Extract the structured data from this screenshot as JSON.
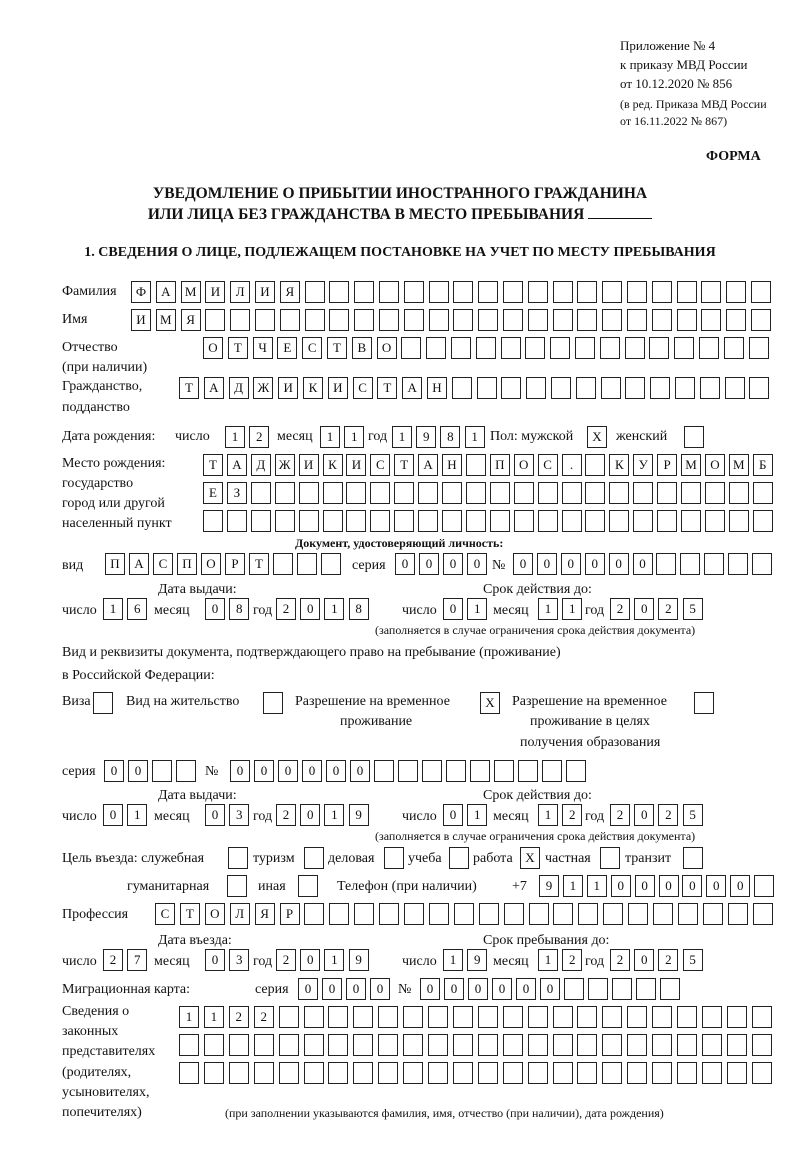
{
  "header": {
    "line1": "Приложение № 4",
    "line2": "к приказу МВД России",
    "line3": "от 10.12.2020 № 856",
    "note1": "(в ред. Приказа МВД России",
    "note2": "от 16.11.2022 № 867)"
  },
  "form_label": "ФОРМА",
  "title": {
    "line1": "УВЕДОМЛЕНИЕ О ПРИБЫТИИ ИНОСТРАННОГО ГРАЖДАНИНА",
    "line2": "ИЛИ ЛИЦА БЕЗ ГРАЖДАНСТВА В МЕСТО ПРЕБЫВАНИЯ",
    "blank": ""
  },
  "section1": {
    "heading": "1. СВЕДЕНИЯ О ЛИЦЕ, ПОДЛЕЖАЩЕМ ПОСТАНОВКЕ НА УЧЕТ ПО МЕСТУ ПРЕБЫВАНИЯ",
    "surname": {
      "label": "Фамилия",
      "value": [
        "Ф",
        "А",
        "М",
        "И",
        "Л",
        "И",
        "Я"
      ]
    },
    "name": {
      "label": "Имя",
      "value": [
        "И",
        "М",
        "Я"
      ]
    },
    "patronymic": {
      "label": "Отчество",
      "label2": "(при наличии)",
      "value": [
        "О",
        "Т",
        "Ч",
        "Е",
        "С",
        "Т",
        "В",
        "О"
      ]
    },
    "citizenship": {
      "label": "Гражданство,",
      "label2": "подданство",
      "value": [
        "Т",
        "А",
        "Д",
        "Ж",
        "И",
        "К",
        "И",
        "С",
        "Т",
        "А",
        "Н"
      ]
    },
    "birth_date": {
      "label": "Дата рождения:",
      "day_label": "число",
      "month_label": "месяц",
      "year_label": "год",
      "day": [
        "1",
        "2"
      ],
      "month": [
        "1",
        "1"
      ],
      "year": [
        "1",
        "9",
        "8",
        "1"
      ]
    },
    "sex": {
      "male_label": "Пол: мужской",
      "male": [
        "Х"
      ],
      "female_label": "женский",
      "female": []
    },
    "birth_place": {
      "label1": "Место рождения:",
      "label2": "государство",
      "label3": "город или другой",
      "label4": "населенный пункт",
      "row1": [
        "Т",
        "А",
        "Д",
        "Ж",
        "И",
        "К",
        "И",
        "С",
        "Т",
        "А",
        "Н",
        "",
        "П",
        "О",
        "С",
        ".",
        "",
        "К",
        "У",
        "Р",
        "М",
        "О",
        "М",
        "Б"
      ],
      "row2": [
        "Е",
        "З"
      ],
      "row3": []
    },
    "identity_doc": {
      "heading": "Документ, удостоверяющий личность:",
      "type_label": "вид",
      "type": [
        "П",
        "А",
        "С",
        "П",
        "О",
        "Р",
        "Т"
      ],
      "series_label": "серия",
      "series": [
        "0",
        "0",
        "0",
        "0"
      ],
      "number_label": "№",
      "number": [
        "0",
        "0",
        "0",
        "0",
        "0",
        "0"
      ],
      "issue_label": "Дата выдачи:",
      "valid_label": "Срок действия до:",
      "day_label": "число",
      "month_label": "месяц",
      "year_label": "год",
      "issue_day": [
        "1",
        "6"
      ],
      "issue_month": [
        "0",
        "8"
      ],
      "issue_year": [
        "2",
        "0",
        "1",
        "8"
      ],
      "valid_day": [
        "0",
        "1"
      ],
      "valid_month": [
        "1",
        "1"
      ],
      "valid_year": [
        "2",
        "0",
        "2",
        "5"
      ],
      "note": "(заполняется в случае ограничения срока действия документа)"
    },
    "stay_doc": {
      "label1": "Вид и реквизиты документа, подтверждающего право на пребывание (проживание)",
      "label2": "в Российской Федерации:",
      "visa_label": "Виза",
      "visa": [],
      "residence_label": "Вид на жительство",
      "residence": [],
      "temp_label1": "Разрешение на временное",
      "temp_label2": "проживание",
      "temp": [
        "Х"
      ],
      "edu_label1": "Разрешение на временное",
      "edu_label2": "проживание в целях",
      "edu_label3": "получения образования",
      "edu": [],
      "series_label": "серия",
      "series": [
        "0",
        "0"
      ],
      "number_label": "№",
      "number": [
        "0",
        "0",
        "0",
        "0",
        "0",
        "0"
      ],
      "issue_label": "Дата выдачи:",
      "valid_label": "Срок действия до:",
      "day_label": "число",
      "month_label": "месяц",
      "year_label": "год",
      "issue_day": [
        "0",
        "1"
      ],
      "issue_month": [
        "0",
        "3"
      ],
      "issue_year": [
        "2",
        "0",
        "1",
        "9"
      ],
      "valid_day": [
        "0",
        "1"
      ],
      "valid_month": [
        "1",
        "2"
      ],
      "valid_year": [
        "2",
        "0",
        "2",
        "5"
      ],
      "note": "(заполняется в случае ограничения срока действия документа)"
    },
    "purpose": {
      "label": "Цель въезда: служебная",
      "official": [],
      "tourism_label": "туризм",
      "tourism": [],
      "business_label": "деловая",
      "business": [],
      "study_label": "учеба",
      "study": [],
      "work_label": "работа",
      "work": [
        "Х"
      ],
      "private_label": "частная",
      "private": [],
      "transit_label": "транзит",
      "transit": [],
      "humanitarian_label": "гуманитарная",
      "humanitarian": [],
      "other_label": "иная",
      "other": []
    },
    "phone": {
      "label": "Телефон (при наличии)",
      "prefix": "+7",
      "value": [
        "9",
        "1",
        "1",
        "0",
        "0",
        "0",
        "0",
        "0",
        "0"
      ]
    },
    "profession": {
      "label": "Профессия",
      "value": [
        "С",
        "Т",
        "О",
        "Л",
        "Я",
        "Р"
      ]
    },
    "entry": {
      "entry_label": "Дата въезда:",
      "stay_label": "Срок пребывания до:",
      "day_label": "число",
      "month_label": "месяц",
      "year_label": "год",
      "entry_day": [
        "2",
        "7"
      ],
      "entry_month": [
        "0",
        "3"
      ],
      "entry_year": [
        "2",
        "0",
        "1",
        "9"
      ],
      "stay_day": [
        "1",
        "9"
      ],
      "stay_month": [
        "1",
        "2"
      ],
      "stay_year": [
        "2",
        "0",
        "2",
        "5"
      ]
    },
    "migration_card": {
      "label": "Миграционная карта:",
      "series_label": "серия",
      "series": [
        "0",
        "0",
        "0",
        "0"
      ],
      "number_label": "№",
      "number": [
        "0",
        "0",
        "0",
        "0",
        "0",
        "0"
      ]
    },
    "representatives": {
      "label1": "Сведения о",
      "label2": "законных",
      "label3": "представителях",
      "label4": "(родителях,",
      "label5": "усыновителях,",
      "label6": "попечителях)",
      "row1": [
        "1",
        "1",
        "2",
        "2"
      ],
      "row2": [],
      "row3": [],
      "note": "(при заполнении указываются фамилия, имя, отчество (при наличии), дата рождения)"
    }
  }
}
